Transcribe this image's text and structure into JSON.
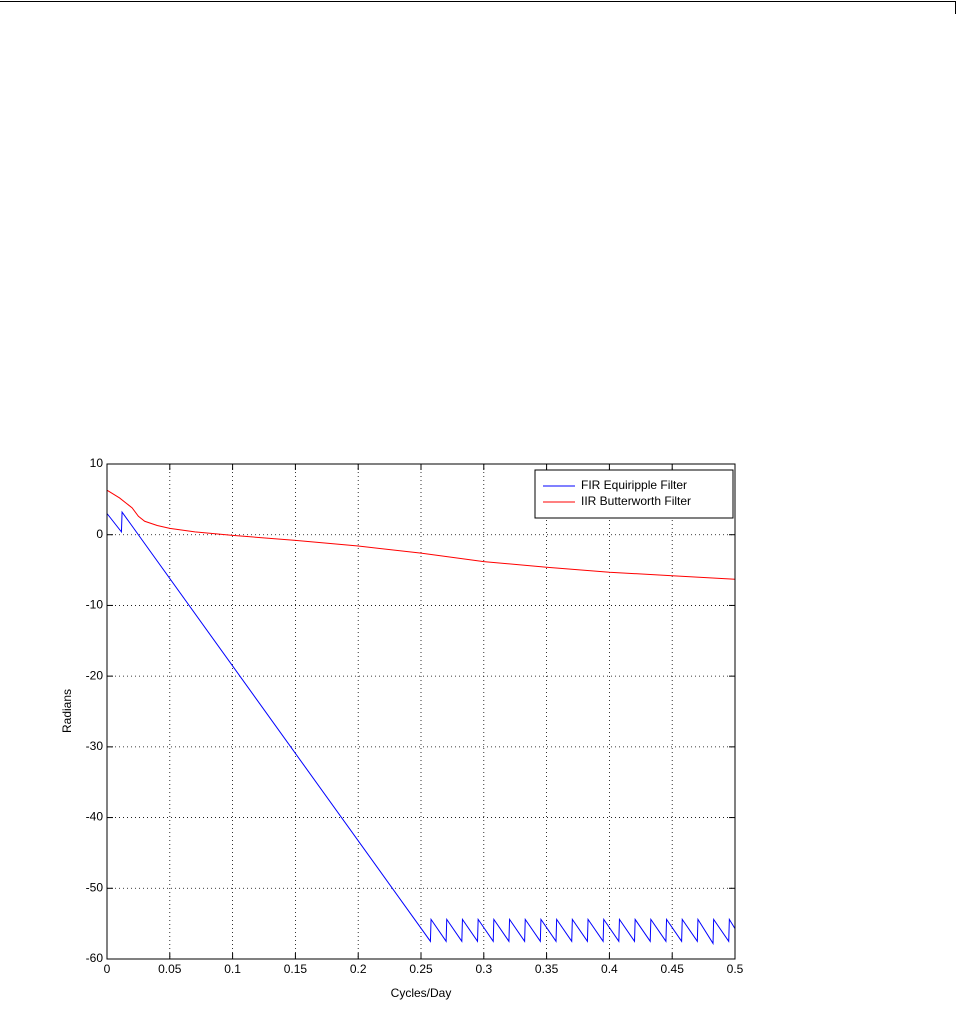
{
  "chart_data": {
    "type": "line",
    "xlabel": "Cycles/Day",
    "ylabel": "Radians",
    "xlim": [
      0,
      0.5
    ],
    "xticks": [
      0,
      0.05,
      0.1,
      0.15,
      0.2,
      0.25,
      0.3,
      0.35,
      0.4,
      0.45,
      0.5
    ],
    "ylim": [
      -60,
      10
    ],
    "yticks": [
      -60,
      -50,
      -40,
      -30,
      -20,
      -10,
      0,
      10
    ],
    "grid": true,
    "legend": "upper right",
    "series": [
      {
        "name": "FIR Equiripple Filter",
        "color": "#0000ff",
        "x": [
          0,
          0.0115,
          0.012,
          0.2575,
          0.258,
          0.27,
          0.2705,
          0.2825,
          0.283,
          0.295,
          0.2955,
          0.3075,
          0.308,
          0.32,
          0.3205,
          0.3325,
          0.333,
          0.345,
          0.3455,
          0.3575,
          0.358,
          0.37,
          0.3705,
          0.3825,
          0.383,
          0.395,
          0.3955,
          0.4075,
          0.408,
          0.42,
          0.4205,
          0.4325,
          0.433,
          0.445,
          0.4455,
          0.4575,
          0.458,
          0.47,
          0.4705,
          0.4825,
          0.483,
          0.495,
          0.4955,
          0.5
        ],
        "values": [
          3,
          0.4,
          3.2,
          -57.5,
          -54.4,
          -57.5,
          -54.4,
          -57.5,
          -54.4,
          -57.5,
          -54.4,
          -57.5,
          -54.4,
          -57.5,
          -54.4,
          -57.5,
          -54.4,
          -57.5,
          -54.4,
          -57.5,
          -54.4,
          -57.5,
          -54.4,
          -57.5,
          -54.4,
          -57.5,
          -54.4,
          -57.5,
          -54.4,
          -57.5,
          -54.4,
          -57.5,
          -54.4,
          -57.5,
          -54.4,
          -57.5,
          -54.4,
          -57.5,
          -54.4,
          -57.8,
          -54.4,
          -57.5,
          -54.4,
          -55.7
        ]
      },
      {
        "name": "IIR Butterworth Filter",
        "color": "#ff0000",
        "x": [
          0,
          0.01,
          0.02,
          0.025,
          0.03,
          0.04,
          0.05,
          0.07,
          0.1,
          0.15,
          0.2,
          0.25,
          0.3,
          0.35,
          0.4,
          0.45,
          0.5
        ],
        "values": [
          6.3,
          5.2,
          3.8,
          2.6,
          1.9,
          1.3,
          0.9,
          0.4,
          -0.1,
          -0.8,
          -1.6,
          -2.6,
          -3.8,
          -4.6,
          -5.3,
          -5.8,
          -6.3
        ]
      }
    ]
  }
}
